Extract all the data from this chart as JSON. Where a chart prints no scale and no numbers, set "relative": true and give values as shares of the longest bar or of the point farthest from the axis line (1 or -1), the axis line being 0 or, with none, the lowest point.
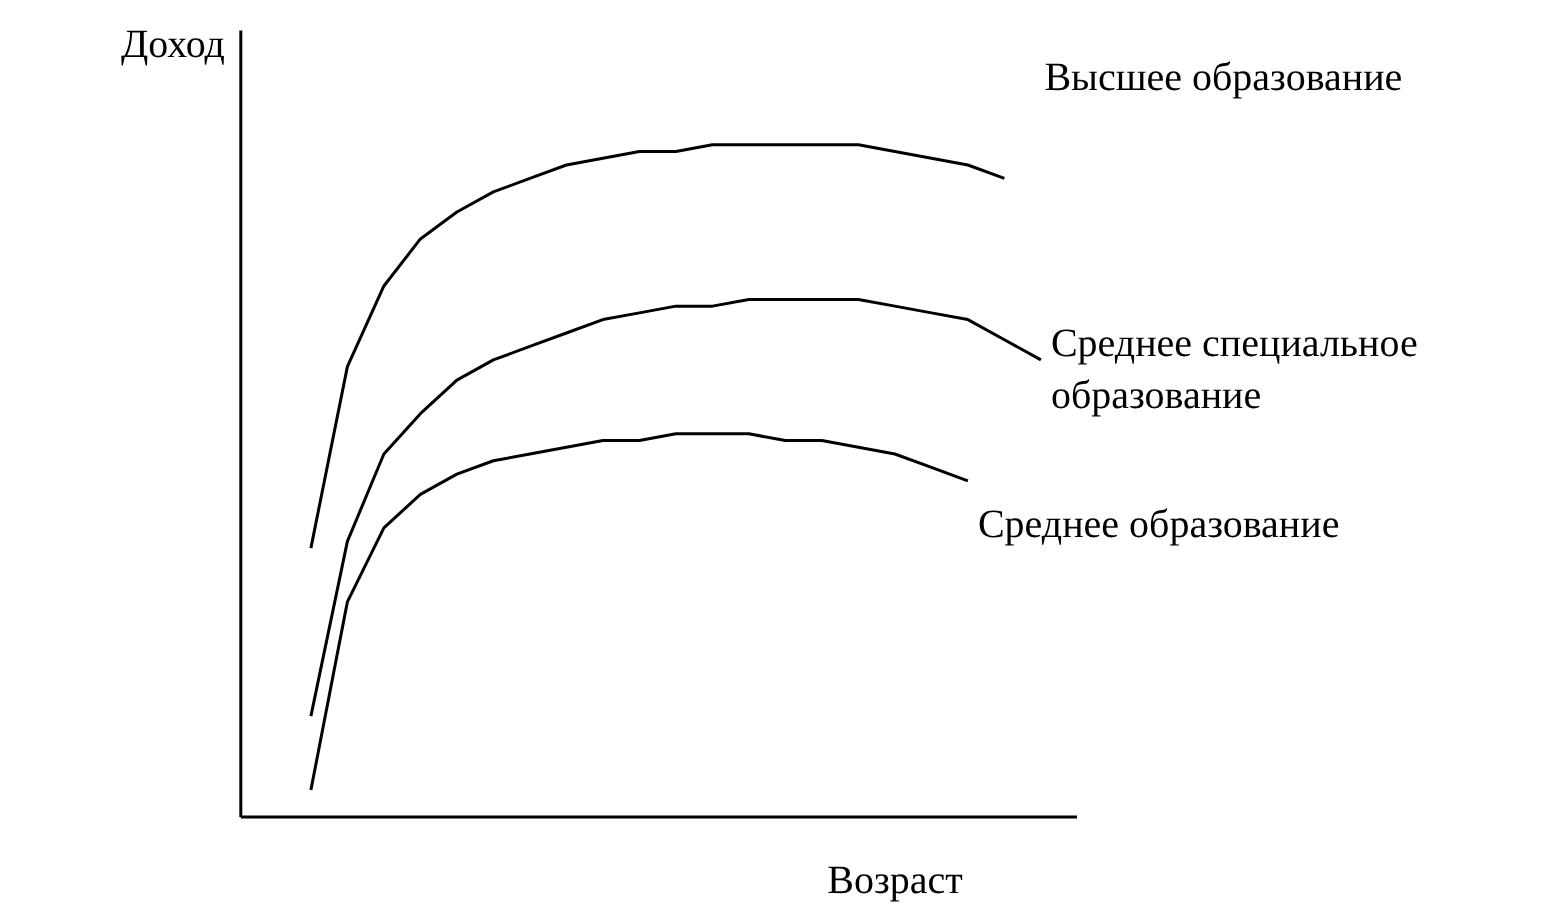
{
  "chart_data": {
    "type": "line",
    "relative": true,
    "xlabel": "Возраст",
    "ylabel": "Доход",
    "legend": false,
    "marker": "none",
    "line_style": "solid",
    "categories": [
      null,
      null,
      null,
      null,
      null,
      null,
      null,
      null,
      null,
      null,
      null,
      null,
      null,
      null,
      null,
      null,
      null,
      null,
      null,
      null,
      null
    ],
    "series": [
      {
        "name": "Высшее образование",
        "color": "#000000",
        "values": [
          0.4,
          0.67,
          0.79,
          0.86,
          0.9,
          0.93,
          0.95,
          0.97,
          0.98,
          0.99,
          0.99,
          1.0,
          1.0,
          1.0,
          1.0,
          1.0,
          0.99,
          0.98,
          0.97,
          0.95,
          null
        ]
      },
      {
        "name": "Среднее специальное образование",
        "color": "#000000",
        "values": [
          0.15,
          0.41,
          0.54,
          0.6,
          0.65,
          0.68,
          0.7,
          0.72,
          0.74,
          0.75,
          0.76,
          0.76,
          0.77,
          0.77,
          0.77,
          0.77,
          0.76,
          0.75,
          0.74,
          0.71,
          0.68
        ]
      },
      {
        "name": "Среднее образование",
        "color": "#000000",
        "values": [
          0.04,
          0.32,
          0.43,
          0.48,
          0.51,
          0.53,
          0.54,
          0.55,
          0.56,
          0.56,
          0.57,
          0.57,
          0.57,
          0.56,
          0.56,
          0.55,
          0.54,
          0.52,
          0.5,
          null,
          null
        ]
      }
    ]
  }
}
